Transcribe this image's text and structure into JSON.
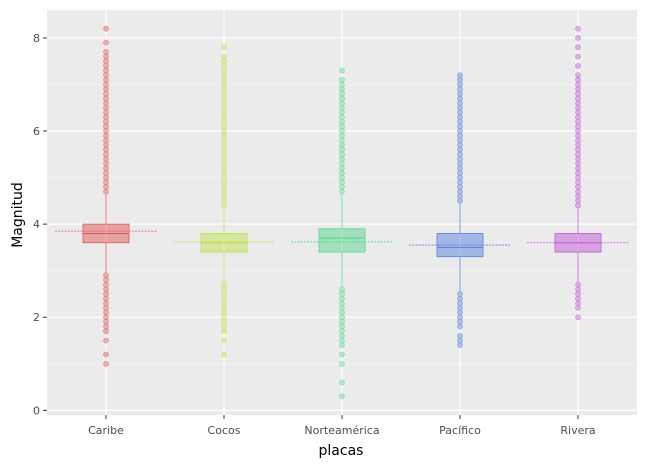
{
  "chart_data": {
    "type": "box",
    "xlabel": "placas",
    "ylabel": "Magnitud",
    "ylim": [
      -0.1,
      8.6
    ],
    "yticks": [
      0,
      2,
      4,
      6,
      8
    ],
    "grid": true,
    "legend": "none",
    "categories": [
      "Caribe",
      "Cocos",
      "Norteamérica",
      "Pacífico",
      "Rivera"
    ],
    "series": [
      {
        "category": "Caribe",
        "color": "#e05a5a",
        "box": {
          "whisker_low": 2.95,
          "q1": 3.6,
          "median": 3.8,
          "q3": 4.0,
          "whisker_high": 4.65
        },
        "mean": 3.85,
        "outliers": [
          1.0,
          1.2,
          1.5,
          1.7,
          1.8,
          1.9,
          2.0,
          2.1,
          2.2,
          2.3,
          2.4,
          2.5,
          2.6,
          2.7,
          2.8,
          2.9,
          4.7,
          4.8,
          4.9,
          5.0,
          5.1,
          5.2,
          5.3,
          5.4,
          5.5,
          5.6,
          5.7,
          5.8,
          5.9,
          6.0,
          6.1,
          6.2,
          6.3,
          6.4,
          6.5,
          6.6,
          6.7,
          6.8,
          6.9,
          7.0,
          7.1,
          7.2,
          7.3,
          7.4,
          7.5,
          7.6,
          7.7,
          7.9,
          8.2
        ]
      },
      {
        "category": "Cocos",
        "color": "#bde050",
        "box": {
          "whisker_low": 2.75,
          "q1": 3.4,
          "median": 3.6,
          "q3": 3.8,
          "whisker_high": 4.35
        },
        "mean": 3.62,
        "outliers": [
          1.2,
          1.5,
          1.7,
          1.8,
          1.9,
          2.0,
          2.1,
          2.2,
          2.3,
          2.4,
          2.5,
          2.6,
          2.7,
          4.4,
          4.5,
          4.6,
          4.7,
          4.8,
          4.9,
          5.0,
          5.1,
          5.2,
          5.3,
          5.4,
          5.5,
          5.6,
          5.7,
          5.8,
          5.9,
          6.0,
          6.1,
          6.2,
          6.3,
          6.4,
          6.5,
          6.6,
          6.7,
          6.8,
          6.9,
          7.0,
          7.1,
          7.2,
          7.3,
          7.4,
          7.5,
          7.6,
          7.8
        ]
      },
      {
        "category": "Norteamérica",
        "color": "#5ad690",
        "box": {
          "whisker_low": 2.65,
          "q1": 3.4,
          "median": 3.7,
          "q3": 3.9,
          "whisker_high": 4.65
        },
        "mean": 3.62,
        "outliers": [
          0.3,
          0.6,
          1.0,
          1.2,
          1.4,
          1.5,
          1.6,
          1.7,
          1.8,
          1.9,
          2.0,
          2.1,
          2.2,
          2.3,
          2.4,
          2.5,
          2.6,
          4.7,
          4.8,
          4.9,
          5.0,
          5.1,
          5.2,
          5.3,
          5.4,
          5.5,
          5.6,
          5.7,
          5.8,
          5.9,
          6.0,
          6.1,
          6.2,
          6.3,
          6.4,
          6.5,
          6.6,
          6.7,
          6.8,
          6.9,
          7.0,
          7.1,
          7.3
        ]
      },
      {
        "category": "Pacífico",
        "color": "#5a82e0",
        "box": {
          "whisker_low": 2.55,
          "q1": 3.3,
          "median": 3.5,
          "q3": 3.8,
          "whisker_high": 4.45
        },
        "mean": 3.55,
        "outliers": [
          1.4,
          1.5,
          1.6,
          1.8,
          1.9,
          2.0,
          2.1,
          2.2,
          2.3,
          2.4,
          2.5,
          4.5,
          4.6,
          4.7,
          4.8,
          4.9,
          5.0,
          5.1,
          5.2,
          5.3,
          5.4,
          5.5,
          5.6,
          5.7,
          5.8,
          5.9,
          6.0,
          6.1,
          6.2,
          6.3,
          6.4,
          6.5,
          6.6,
          6.7,
          6.8,
          6.9,
          7.0,
          7.1,
          7.2
        ]
      },
      {
        "category": "Rivera",
        "color": "#c25ad8",
        "box": {
          "whisker_low": 2.75,
          "q1": 3.4,
          "median": 3.6,
          "q3": 3.8,
          "whisker_high": 4.35
        },
        "mean": 3.6,
        "outliers": [
          2.0,
          2.2,
          2.3,
          2.4,
          2.5,
          2.6,
          2.7,
          4.4,
          4.5,
          4.6,
          4.7,
          4.8,
          4.9,
          5.0,
          5.1,
          5.2,
          5.3,
          5.4,
          5.5,
          5.6,
          5.7,
          5.8,
          5.9,
          6.0,
          6.1,
          6.2,
          6.3,
          6.4,
          6.5,
          6.6,
          6.7,
          6.8,
          6.9,
          7.0,
          7.1,
          7.2,
          7.4,
          7.6,
          7.8,
          8.0,
          8.2
        ]
      }
    ]
  },
  "colors": {
    "panel_background": "#ebebeb",
    "grid_major": "#ffffff",
    "tick_text": "#4d4d4d"
  }
}
